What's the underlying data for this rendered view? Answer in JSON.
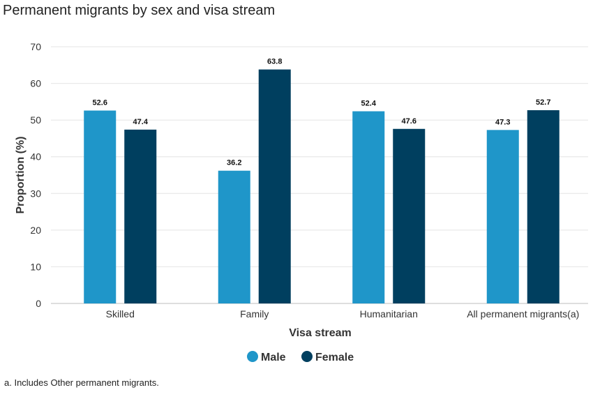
{
  "title": "Permanent migrants by sex and visa stream",
  "footnote": "a. Includes Other permanent migrants.",
  "chart_data": {
    "type": "bar",
    "title": "Permanent migrants by sex and visa stream",
    "xlabel": "Visa stream",
    "ylabel": "Proportion (%)",
    "ylim": [
      0,
      70
    ],
    "yticks": [
      0,
      10,
      20,
      30,
      40,
      50,
      60,
      70
    ],
    "grid": true,
    "legend_position": "bottom",
    "categories": [
      "Skilled",
      "Family",
      "Humanitarian",
      "All permanent migrants(a)"
    ],
    "series": [
      {
        "name": "Male",
        "color": "#1f96c9",
        "values": [
          52.6,
          36.2,
          52.4,
          47.3
        ]
      },
      {
        "name": "Female",
        "color": "#003f5f",
        "values": [
          47.4,
          63.8,
          47.6,
          52.7
        ]
      }
    ]
  }
}
